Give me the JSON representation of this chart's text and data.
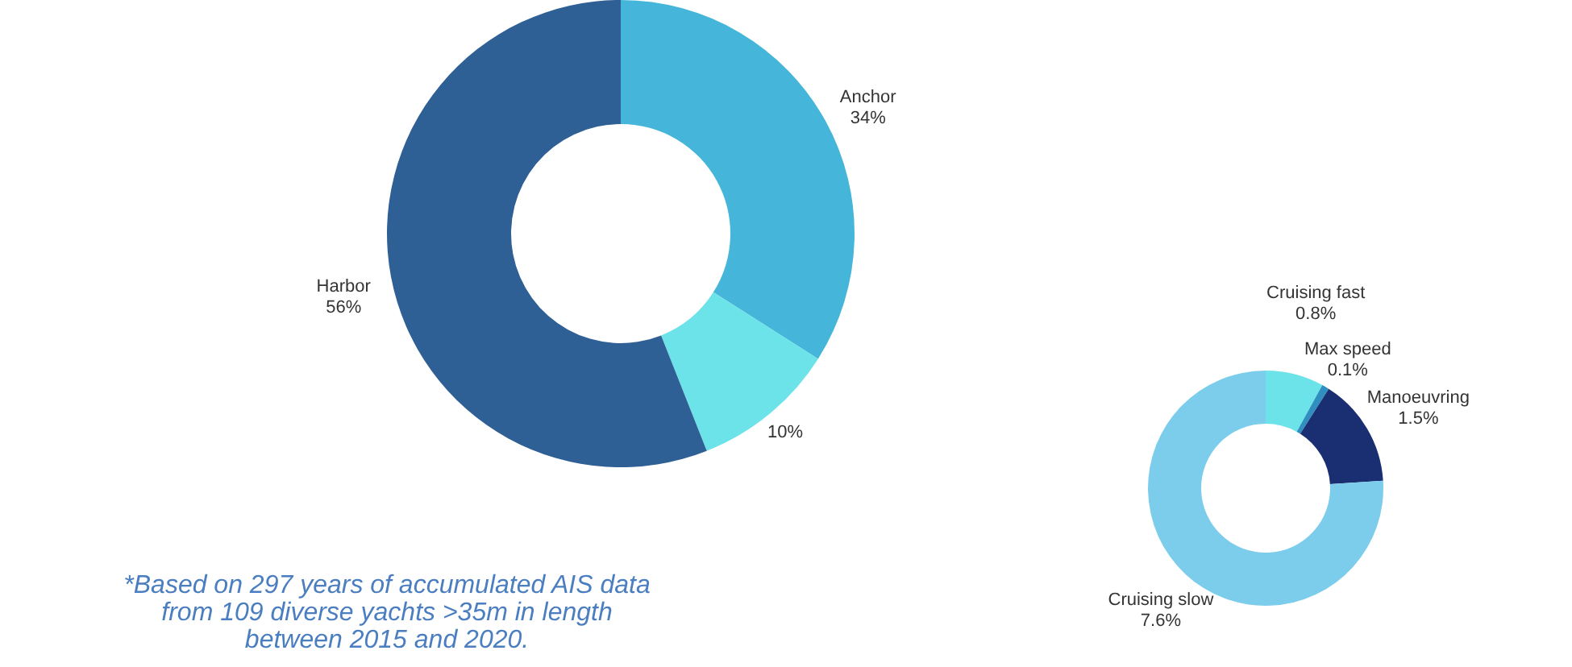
{
  "chart_data": [
    {
      "type": "donut",
      "categories": [
        "Anchor",
        null,
        "Harbor"
      ],
      "values": [
        34,
        10,
        56
      ],
      "value_labels": [
        "34%",
        "10%",
        "56%"
      ],
      "colors": [
        "#45b6d9",
        "#6be3e8",
        "#2e5f95"
      ],
      "legend": false,
      "annotations": [
        "*Based on 297 years of accumulated AIS data\nfrom 109 diverse yachts >35m in length\nbetween 2015 and 2020."
      ]
    },
    {
      "type": "donut",
      "categories": [
        "Cruising fast",
        "Max speed",
        "Manoeuvring",
        "Cruising  slow"
      ],
      "values": [
        0.8,
        0.1,
        1.5,
        7.6
      ],
      "value_labels": [
        "0.8%",
        "0.1%",
        "1.5%",
        "7.6%"
      ],
      "colors": [
        "#6be3e8",
        "#2f8fc0",
        "#1a2f72",
        "#7ccdec"
      ],
      "legend": false
    }
  ]
}
